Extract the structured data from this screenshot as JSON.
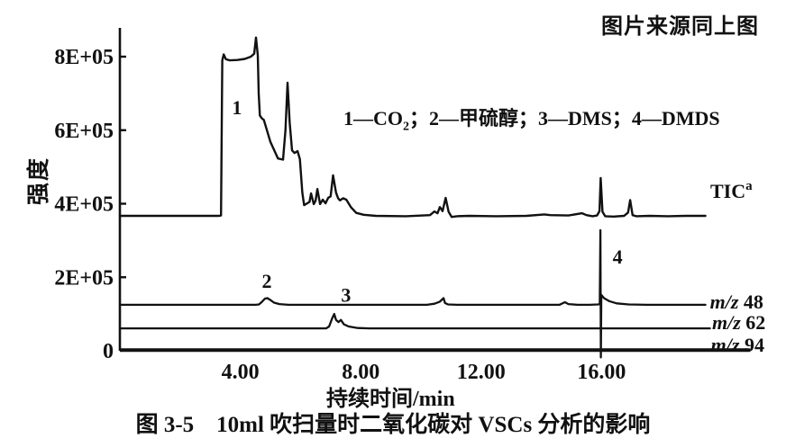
{
  "header": {
    "source_note": "图片来源同上图"
  },
  "legend": {
    "text": "1—CO₂；2—甲硫醇；3—DMS；4—DMDS",
    "parts": [
      {
        "t": "1—CO"
      },
      {
        "sub": "2"
      },
      {
        "t": "；2—甲硫醇；3—DMS；4—DMDS"
      }
    ]
  },
  "caption": {
    "text": "图 3-5　10ml 吹扫量时二氧化碳对 VSCs 分析的影响"
  },
  "chart_data": {
    "type": "line",
    "title": "10ml 吹扫量时二氧化碳对 VSCs 分析的影响",
    "xlabel": "持续时间/min",
    "ylabel": "强度",
    "xlim": [
      0,
      20.9
    ],
    "ylim": [
      -20000,
      880000
    ],
    "grid": false,
    "legend_note": "1=CO2, 2=甲硫醇(methyl mercaptan), 3=DMS, 4=DMDS",
    "x_ticks": [
      {
        "value": 4,
        "label": "4.00"
      },
      {
        "value": 8,
        "label": "8.00"
      },
      {
        "value": 12,
        "label": "12.00"
      },
      {
        "value": 16,
        "label": "16.00"
      }
    ],
    "y_ticks": [
      {
        "value": 800000,
        "label": "8E+05"
      },
      {
        "value": 600000,
        "label": "6E+05"
      },
      {
        "value": 400000,
        "label": "4E+05"
      },
      {
        "value": 200000,
        "label": "2E+05"
      },
      {
        "value": 0,
        "label": "0"
      }
    ],
    "peak_labels": [
      {
        "label": "1",
        "t": 3.89,
        "v": 643000
      },
      {
        "label": "2",
        "t": 4.88,
        "v": 171000
      },
      {
        "label": "3",
        "t": 7.51,
        "v": 133000
      },
      {
        "label": "4",
        "t": 16.53,
        "v": 237000
      }
    ],
    "series": [
      {
        "name": "TIC",
        "label_parts": [
          {
            "t": "TIC"
          },
          {
            "sup": "a"
          }
        ],
        "label_pos": {
          "t": 19.61,
          "v": 416000
        },
        "width": 2.4,
        "points": [
          [
            0,
            367000
          ],
          [
            1.2,
            367000
          ],
          [
            2.4,
            367000
          ],
          [
            3.3,
            367000
          ],
          [
            3.36,
            368000
          ],
          [
            3.4,
            790000
          ],
          [
            3.45,
            806000
          ],
          [
            3.52,
            793000
          ],
          [
            3.65,
            790000
          ],
          [
            3.9,
            791000
          ],
          [
            4.15,
            794000
          ],
          [
            4.35,
            800000
          ],
          [
            4.46,
            808000
          ],
          [
            4.52,
            852000
          ],
          [
            4.58,
            804000
          ],
          [
            4.61,
            700000
          ],
          [
            4.65,
            640000
          ],
          [
            4.72,
            632000
          ],
          [
            4.78,
            628000
          ],
          [
            5.0,
            568000
          ],
          [
            5.25,
            523000
          ],
          [
            5.42,
            520000
          ],
          [
            5.5,
            600000
          ],
          [
            5.57,
            729000
          ],
          [
            5.64,
            620000
          ],
          [
            5.72,
            545000
          ],
          [
            5.8,
            538000
          ],
          [
            5.9,
            543000
          ],
          [
            5.98,
            521000
          ],
          [
            6.06,
            430000
          ],
          [
            6.12,
            396000
          ],
          [
            6.2,
            400000
          ],
          [
            6.3,
            405000
          ],
          [
            6.35,
            428000
          ],
          [
            6.44,
            399000
          ],
          [
            6.5,
            408000
          ],
          [
            6.56,
            440000
          ],
          [
            6.65,
            399000
          ],
          [
            6.74,
            411000
          ],
          [
            6.83,
            401000
          ],
          [
            6.92,
            416000
          ],
          [
            7.0,
            420000
          ],
          [
            7.08,
            477000
          ],
          [
            7.18,
            430000
          ],
          [
            7.25,
            415000
          ],
          [
            7.31,
            409000
          ],
          [
            7.42,
            415000
          ],
          [
            7.52,
            411000
          ],
          [
            7.68,
            390000
          ],
          [
            7.85,
            375000
          ],
          [
            8.1,
            370000
          ],
          [
            8.5,
            367000
          ],
          [
            9.5,
            366000
          ],
          [
            10.3,
            369000
          ],
          [
            10.45,
            379000
          ],
          [
            10.55,
            374000
          ],
          [
            10.63,
            391000
          ],
          [
            10.72,
            380000
          ],
          [
            10.82,
            416000
          ],
          [
            10.92,
            378000
          ],
          [
            11.02,
            364000
          ],
          [
            11.2,
            366000
          ],
          [
            11.6,
            367000
          ],
          [
            12.5,
            366000
          ],
          [
            13.5,
            367000
          ],
          [
            14.1,
            371000
          ],
          [
            14.3,
            369000
          ],
          [
            14.9,
            368000
          ],
          [
            15.35,
            374000
          ],
          [
            15.5,
            369000
          ],
          [
            15.7,
            366000
          ],
          [
            15.85,
            368000
          ],
          [
            15.93,
            380000
          ],
          [
            15.97,
            470000
          ],
          [
            16.03,
            378000
          ],
          [
            16.12,
            366000
          ],
          [
            16.4,
            365000
          ],
          [
            16.75,
            367000
          ],
          [
            16.88,
            376000
          ],
          [
            16.95,
            410000
          ],
          [
            17.03,
            369000
          ],
          [
            17.15,
            366000
          ],
          [
            17.6,
            367000
          ],
          [
            18.2,
            366000
          ],
          [
            18.8,
            367000
          ],
          [
            19.45,
            367000
          ]
        ]
      },
      {
        "name": "m/z 48",
        "label_parts": [
          {
            "i": "m/z"
          },
          {
            "t": " 48"
          }
        ],
        "label_pos": {
          "t": 19.6,
          "v": 115000
        },
        "width": 2.3,
        "points": [
          [
            0,
            125000
          ],
          [
            1,
            125000
          ],
          [
            2,
            125000
          ],
          [
            3,
            125000
          ],
          [
            4,
            125000
          ],
          [
            4.5,
            125000
          ],
          [
            4.62,
            126000
          ],
          [
            4.72,
            133000
          ],
          [
            4.82,
            142000
          ],
          [
            4.9,
            143000
          ],
          [
            5.0,
            138000
          ],
          [
            5.12,
            131000
          ],
          [
            5.3,
            127000
          ],
          [
            5.6,
            125000
          ],
          [
            7,
            125000
          ],
          [
            9,
            125000
          ],
          [
            10.2,
            125000
          ],
          [
            10.45,
            128000
          ],
          [
            10.62,
            133000
          ],
          [
            10.75,
            143000
          ],
          [
            10.8,
            130000
          ],
          [
            10.9,
            126000
          ],
          [
            11.2,
            125000
          ],
          [
            13,
            125000
          ],
          [
            14.6,
            125000
          ],
          [
            14.78,
            132000
          ],
          [
            14.9,
            127000
          ],
          [
            15.2,
            125000
          ],
          [
            15.6,
            125000
          ],
          [
            15.88,
            126000
          ],
          [
            15.94,
            127000
          ],
          [
            15.96,
            328000
          ],
          [
            15.975,
            -18000
          ],
          [
            15.99,
            152000
          ],
          [
            16.08,
            143000
          ],
          [
            16.25,
            135000
          ],
          [
            16.5,
            129000
          ],
          [
            16.9,
            126000
          ],
          [
            17.5,
            125000
          ],
          [
            18.5,
            125000
          ],
          [
            19.45,
            125000
          ]
        ]
      },
      {
        "name": "m/z 62",
        "label_parts": [
          {
            "i": "m/z"
          },
          {
            "t": " 62"
          }
        ],
        "label_pos": {
          "t": 19.67,
          "v": 59000
        },
        "width": 2.3,
        "points": [
          [
            0,
            61000
          ],
          [
            2,
            61000
          ],
          [
            4,
            61000
          ],
          [
            6,
            61000
          ],
          [
            6.85,
            61000
          ],
          [
            6.95,
            66000
          ],
          [
            7.05,
            88000
          ],
          [
            7.12,
            100000
          ],
          [
            7.18,
            84000
          ],
          [
            7.26,
            78000
          ],
          [
            7.34,
            84000
          ],
          [
            7.44,
            72000
          ],
          [
            7.6,
            66000
          ],
          [
            7.9,
            62000
          ],
          [
            8.3,
            61000
          ],
          [
            10,
            61000
          ],
          [
            12,
            61000
          ],
          [
            14,
            61000
          ],
          [
            16,
            61000
          ],
          [
            18,
            61000
          ],
          [
            19.6,
            61000
          ]
        ]
      },
      {
        "name": "m/z 94",
        "label_parts": [
          {
            "i": "m/z"
          },
          {
            "t": " 94"
          }
        ],
        "label_pos": {
          "t": 19.63,
          "v": -2000
        },
        "width": 2.2,
        "points": [
          [
            0,
            4000
          ],
          [
            4,
            4000
          ],
          [
            8,
            4000
          ],
          [
            12,
            4000
          ],
          [
            15,
            4000
          ],
          [
            17,
            4000
          ],
          [
            19,
            4000
          ],
          [
            20.9,
            4000
          ]
        ]
      }
    ]
  }
}
